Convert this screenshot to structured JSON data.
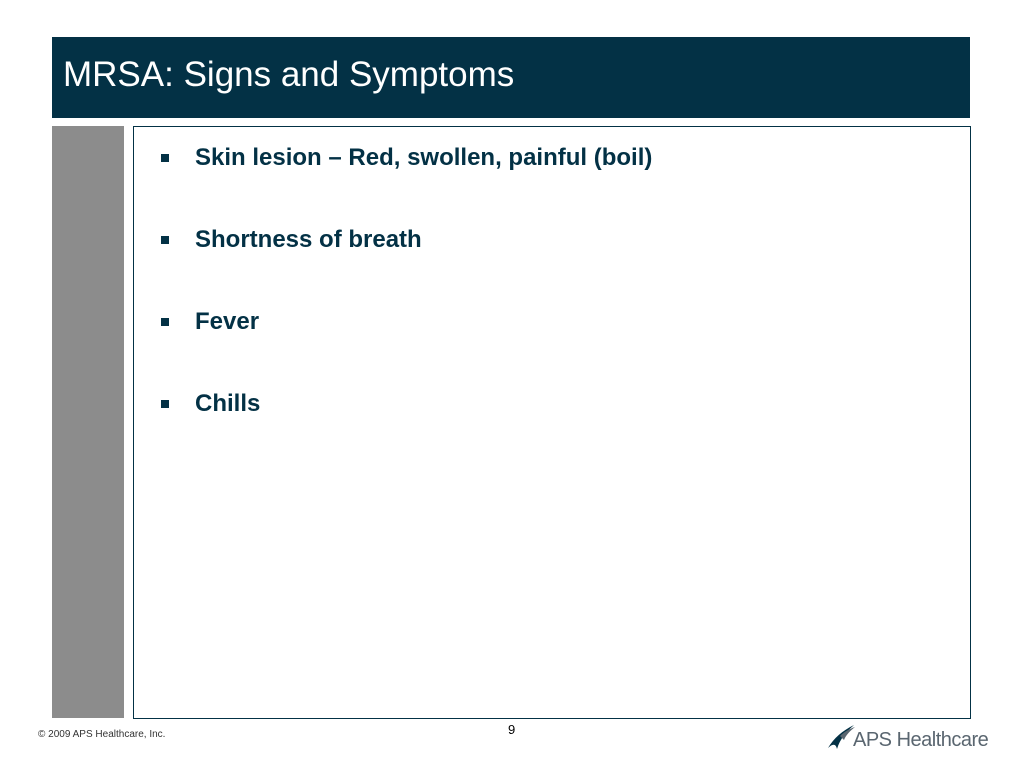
{
  "slide": {
    "title": "MRSA: Signs and Symptoms",
    "bullets": [
      "Skin lesion – Red, swollen, painful (boil)",
      "Shortness of breath",
      "Fever",
      "Chills"
    ],
    "page_number": "9"
  },
  "footer": {
    "copyright": "© 2009 APS Healthcare, Inc.",
    "logo_text": "APS Healthcare",
    "logo_icon": "aps-swoosh-icon"
  },
  "colors": {
    "title_background": "#033145",
    "title_text": "#ffffff",
    "side_band": "#8c8c8c",
    "body_text": "#033145",
    "box_border": "#033145",
    "logo_text": "#5a6670",
    "logo_mark": "#033145"
  }
}
